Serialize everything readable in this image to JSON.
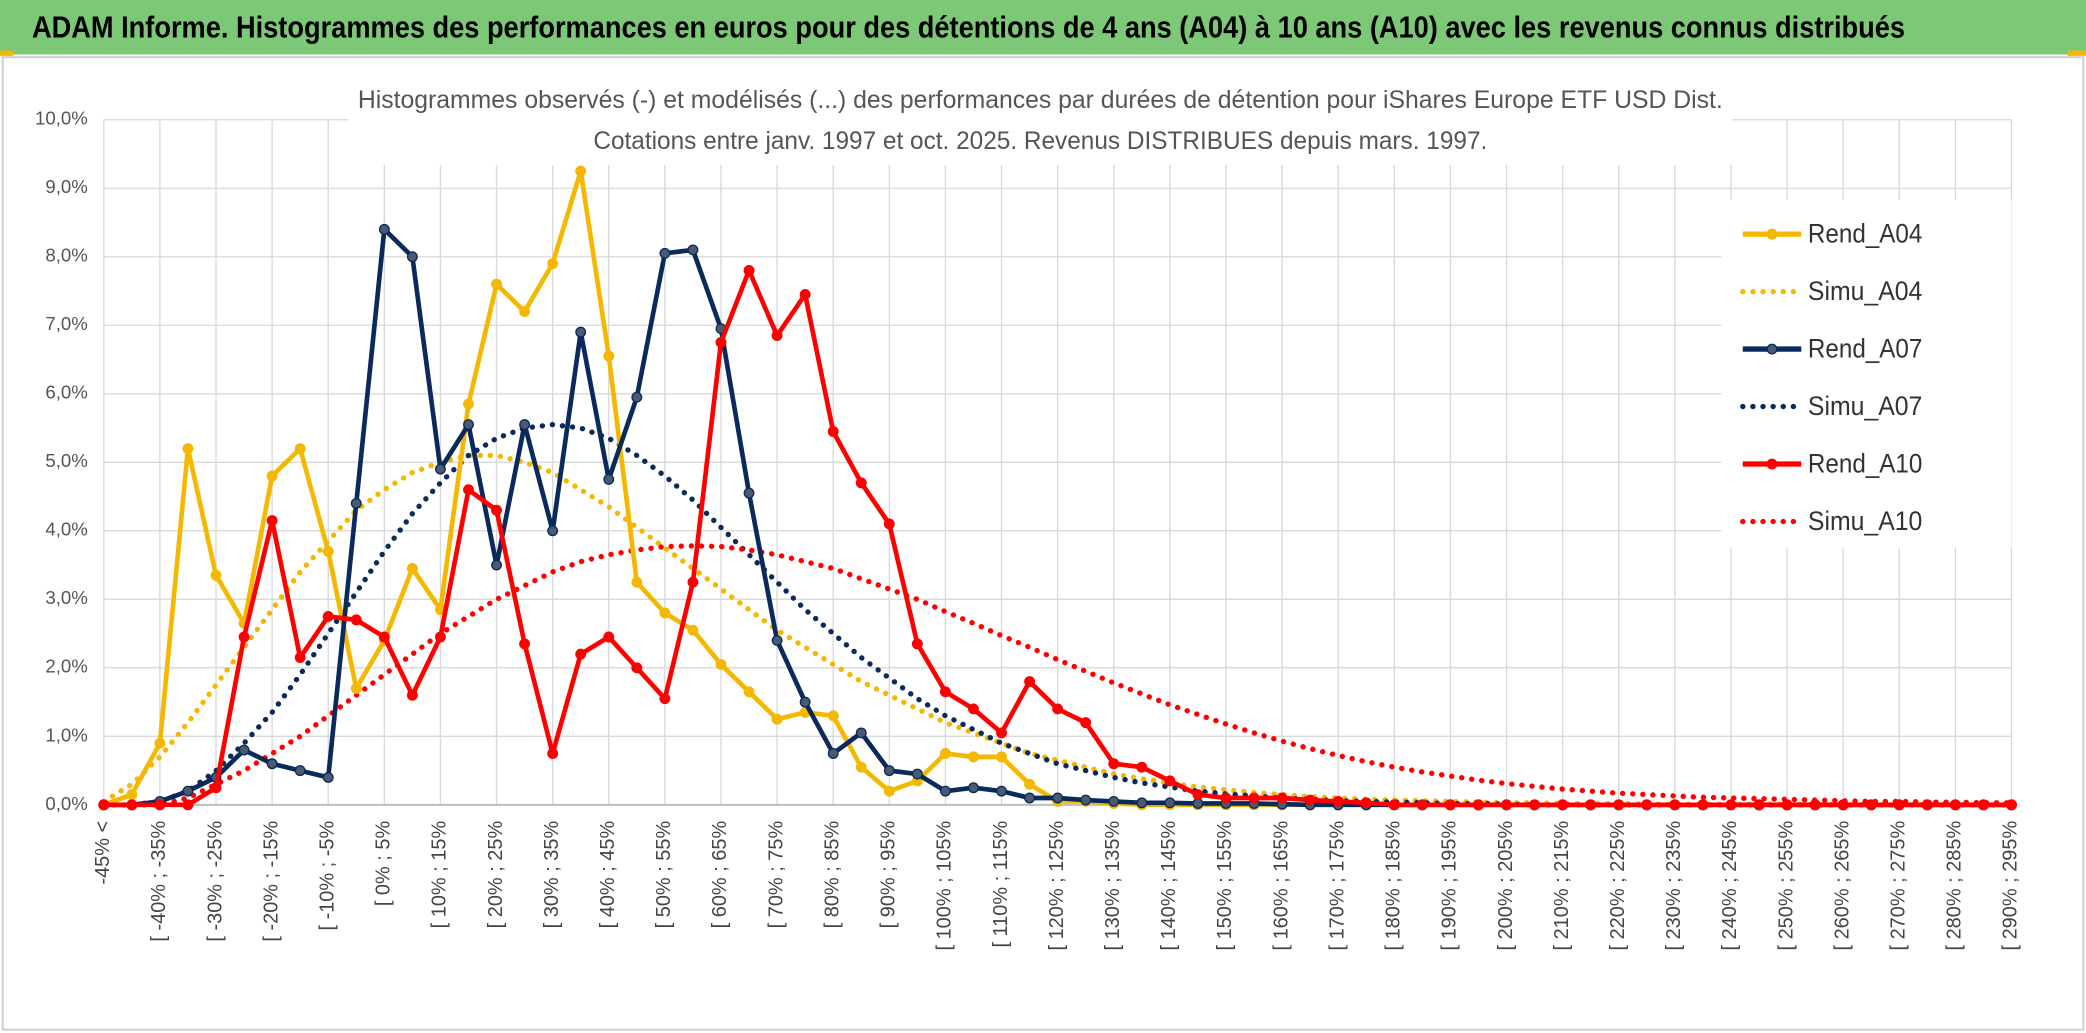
{
  "header": "ADAM Informe. Histogrammes des performances en euros pour des détentions de 4 ans (A04) à 10 ans (A10) avec les revenus connus distribués",
  "chart_data": {
    "type": "line",
    "title": "Histogrammes observés (-) et modélisés (...) des performances par durées de détention pour iShares Europe ETF USD Dist.",
    "subtitle": "Cotations entre janv. 1997 et oct. 2025. Revenus DISTRIBUES depuis mars. 1997.",
    "categories": [
      "-45% <",
      null,
      "[ -40% ; -35%",
      null,
      "[ -30% ; -25%",
      null,
      "[ -20% ; -15%",
      null,
      "[ -10% ; -5%",
      null,
      "[ 0% ; 5%",
      null,
      "[ 10% ; 15%",
      null,
      "[ 20% ; 25%",
      null,
      "[ 30% ; 35%",
      null,
      "[ 40% ; 45%",
      null,
      "[ 50% ; 55%",
      null,
      "[ 60% ; 65%",
      null,
      "[ 70% ; 75%",
      null,
      "[ 80% ; 85%",
      null,
      "[ 90% ; 95%",
      null,
      "[ 100% ; 105%",
      null,
      "[ 110% ; 115%",
      null,
      "[ 120% ; 125%",
      null,
      "[ 130% ; 135%",
      null,
      "[ 140% ; 145%",
      null,
      "[ 150% ; 155%",
      null,
      "[ 160% ; 165%",
      null,
      "[ 170% ; 175%",
      null,
      "[ 180% ; 185%",
      null,
      "[ 190% ; 195%",
      null,
      "[ 200% ; 205%",
      null,
      "[ 210% ; 215%",
      null,
      "[ 220% ; 225%",
      null,
      "[ 230% ; 235%",
      null,
      "[ 240% ; 245%",
      null,
      "[ 250% ; 255%",
      null,
      "[ 260% ; 265%",
      null,
      "[ 270% ; 275%",
      null,
      "[ 280% ; 285%",
      null,
      "[ 290% ; 295%"
    ],
    "ylim": [
      0,
      10
    ],
    "yticks": [
      {
        "value": 0,
        "label": "0,0%"
      },
      {
        "value": 1,
        "label": "1,0%"
      },
      {
        "value": 2,
        "label": "2,0%"
      },
      {
        "value": 3,
        "label": "3,0%"
      },
      {
        "value": 4,
        "label": "4,0%"
      },
      {
        "value": 5,
        "label": "5,0%"
      },
      {
        "value": 6,
        "label": "6,0%"
      },
      {
        "value": 7,
        "label": "7,0%"
      },
      {
        "value": 8,
        "label": "8,0%"
      },
      {
        "value": 9,
        "label": "9,0%"
      },
      {
        "value": 10,
        "label": "10,0%"
      }
    ],
    "grid": true,
    "legend": "right",
    "series": [
      {
        "name": "Rend_A04",
        "color": "#f5b800",
        "style": "solid",
        "markers": true,
        "values": [
          0,
          0.15,
          0.9,
          5.2,
          3.35,
          2.65,
          4.8,
          5.2,
          3.7,
          1.7,
          2.4,
          3.45,
          2.85,
          5.85,
          7.6,
          7.2,
          7.9,
          9.25,
          6.55,
          3.25,
          2.8,
          2.55,
          2.05,
          1.65,
          1.25,
          1.35,
          1.3,
          0.55,
          0.2,
          0.35,
          0.75,
          0.7,
          0.7,
          0.3,
          0.05,
          0.05,
          0.02,
          0,
          0,
          0,
          0,
          0,
          0,
          0,
          0,
          0,
          0,
          0,
          0,
          0,
          0,
          0,
          0,
          0,
          0,
          0,
          0,
          0,
          0,
          0,
          0,
          0,
          0,
          0,
          0,
          0,
          0,
          0,
          0
        ]
      },
      {
        "name": "Simu_A04",
        "color": "#f5b800",
        "style": "dotted",
        "markers": false,
        "values": [
          0.05,
          0.3,
          0.7,
          1.2,
          1.75,
          2.3,
          2.85,
          3.4,
          3.85,
          4.3,
          4.6,
          4.85,
          5.0,
          5.1,
          5.1,
          5.0,
          4.85,
          4.6,
          4.35,
          4.05,
          3.75,
          3.45,
          3.15,
          2.85,
          2.55,
          2.3,
          2.05,
          1.8,
          1.6,
          1.4,
          1.2,
          1.05,
          0.9,
          0.75,
          0.65,
          0.55,
          0.45,
          0.38,
          0.32,
          0.26,
          0.22,
          0.18,
          0.15,
          0.12,
          0.1,
          0.08,
          0.07,
          0.06,
          0.05,
          0.04,
          0.03,
          0.03,
          0.02,
          0.02,
          0.02,
          0.01,
          0.01,
          0.01,
          0.01,
          0.01,
          0.01,
          0,
          0,
          0,
          0,
          0,
          0,
          0,
          0
        ]
      },
      {
        "name": "Rend_A07",
        "color": "#0b2a5c",
        "marker_color": "#4a5a70",
        "style": "solid",
        "markers": true,
        "values": [
          0,
          0,
          0.05,
          0.2,
          0.4,
          0.8,
          0.6,
          0.5,
          0.4,
          4.4,
          8.4,
          8.0,
          4.9,
          5.55,
          3.5,
          5.55,
          4.0,
          6.9,
          4.75,
          5.95,
          8.05,
          8.1,
          6.95,
          4.55,
          2.4,
          1.5,
          0.75,
          1.05,
          0.5,
          0.45,
          0.2,
          0.25,
          0.2,
          0.1,
          0.1,
          0.07,
          0.05,
          0.03,
          0.03,
          0.02,
          0.02,
          0.02,
          0.01,
          0,
          0,
          0,
          0,
          0,
          0,
          0,
          0,
          0,
          0,
          0,
          0,
          0,
          0,
          0,
          0,
          0,
          0,
          0,
          0,
          0,
          0,
          0,
          0,
          0,
          0
        ]
      },
      {
        "name": "Simu_A07",
        "color": "#0b2a5c",
        "style": "dotted",
        "markers": false,
        "values": [
          0,
          0,
          0.05,
          0.2,
          0.5,
          0.9,
          1.35,
          1.9,
          2.5,
          3.1,
          3.7,
          4.25,
          4.7,
          5.1,
          5.35,
          5.5,
          5.55,
          5.5,
          5.35,
          5.1,
          4.8,
          4.45,
          4.05,
          3.65,
          3.25,
          2.85,
          2.5,
          2.15,
          1.85,
          1.55,
          1.3,
          1.1,
          0.9,
          0.75,
          0.6,
          0.5,
          0.4,
          0.32,
          0.26,
          0.2,
          0.16,
          0.13,
          0.1,
          0.08,
          0.06,
          0.05,
          0.04,
          0.03,
          0.02,
          0.02,
          0.01,
          0,
          0,
          0,
          0,
          0,
          0,
          0,
          0,
          0,
          0,
          0,
          0,
          0,
          0,
          0,
          0,
          0,
          0
        ]
      },
      {
        "name": "Rend_A10",
        "color": "#ff0000",
        "style": "solid",
        "markers": true,
        "values": [
          0,
          0,
          0,
          0,
          0.25,
          2.45,
          4.15,
          2.15,
          2.75,
          2.7,
          2.45,
          1.6,
          2.45,
          4.6,
          4.3,
          2.35,
          0.75,
          2.2,
          2.45,
          2.0,
          1.55,
          3.25,
          6.75,
          7.8,
          6.85,
          7.45,
          5.45,
          4.7,
          4.1,
          2.35,
          1.65,
          1.4,
          1.05,
          1.8,
          1.4,
          1.2,
          0.6,
          0.55,
          0.35,
          0.15,
          0.1,
          0.1,
          0.1,
          0.07,
          0.05,
          0.03,
          0,
          0,
          0,
          0,
          0,
          0,
          0,
          0,
          0,
          0,
          0,
          0,
          0,
          0,
          0,
          0,
          0,
          0,
          0,
          0,
          0,
          0,
          0
        ]
      },
      {
        "name": "Simu_A10",
        "color": "#ff0000",
        "style": "dotted",
        "markers": false,
        "values": [
          0,
          0,
          0,
          0.1,
          0.3,
          0.5,
          0.75,
          1.0,
          1.3,
          1.6,
          1.9,
          2.2,
          2.5,
          2.75,
          3.0,
          3.2,
          3.4,
          3.55,
          3.65,
          3.72,
          3.77,
          3.78,
          3.77,
          3.72,
          3.65,
          3.55,
          3.45,
          3.3,
          3.15,
          3.0,
          2.82,
          2.65,
          2.47,
          2.3,
          2.12,
          1.95,
          1.78,
          1.62,
          1.46,
          1.32,
          1.18,
          1.05,
          0.93,
          0.82,
          0.72,
          0.63,
          0.55,
          0.48,
          0.42,
          0.36,
          0.31,
          0.27,
          0.23,
          0.2,
          0.17,
          0.15,
          0.13,
          0.11,
          0.1,
          0.09,
          0.08,
          0.07,
          0.06,
          0.05,
          0.05,
          0.04,
          0.04,
          0.03,
          0.03
        ]
      }
    ]
  }
}
